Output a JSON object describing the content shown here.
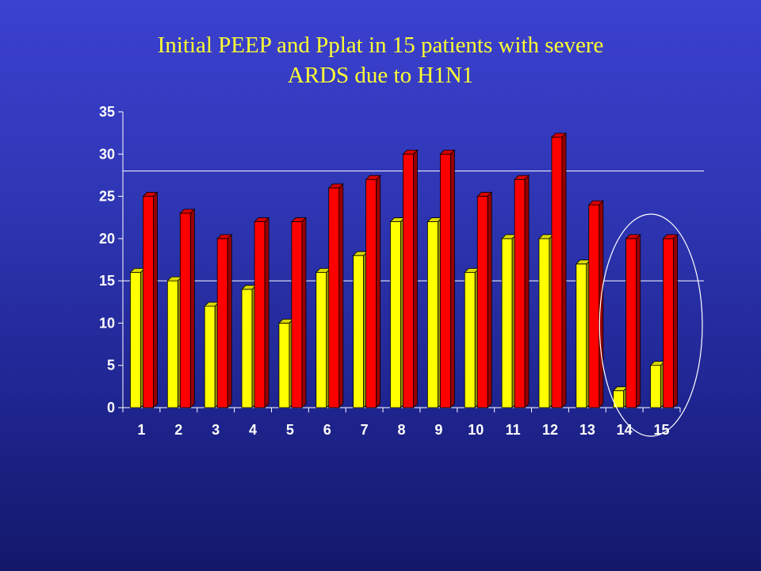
{
  "slide": {
    "title_line1": "Initial PEEP and Pplat in 15 patients with severe",
    "title_line2": "ARDS due to H1N1"
  },
  "chart_data": {
    "type": "bar",
    "title": "Initial PEEP and Pplat in 15 patients with severe ARDS due to H1N1",
    "xlabel": "",
    "ylabel": "",
    "categories": [
      "1",
      "2",
      "3",
      "4",
      "5",
      "6",
      "7",
      "8",
      "9",
      "10",
      "11",
      "12",
      "13",
      "14",
      "15"
    ],
    "series": [
      {
        "color": "#ffff00",
        "values": [
          16,
          15,
          12,
          14,
          10,
          16,
          18,
          22,
          22,
          16,
          20,
          20,
          17,
          2,
          5
        ]
      },
      {
        "color": "#ff0000",
        "values": [
          25,
          23,
          20,
          22,
          22,
          26,
          27,
          30,
          30,
          25,
          27,
          32,
          24,
          20,
          20
        ]
      }
    ],
    "ylim": [
      0,
      35
    ],
    "yticks": [
      0,
      5,
      10,
      15,
      20,
      25,
      30,
      35
    ],
    "reference_lines": [
      15,
      28
    ],
    "highlight_categories": [
      "14",
      "15"
    ],
    "grid": false,
    "legend": "none"
  }
}
